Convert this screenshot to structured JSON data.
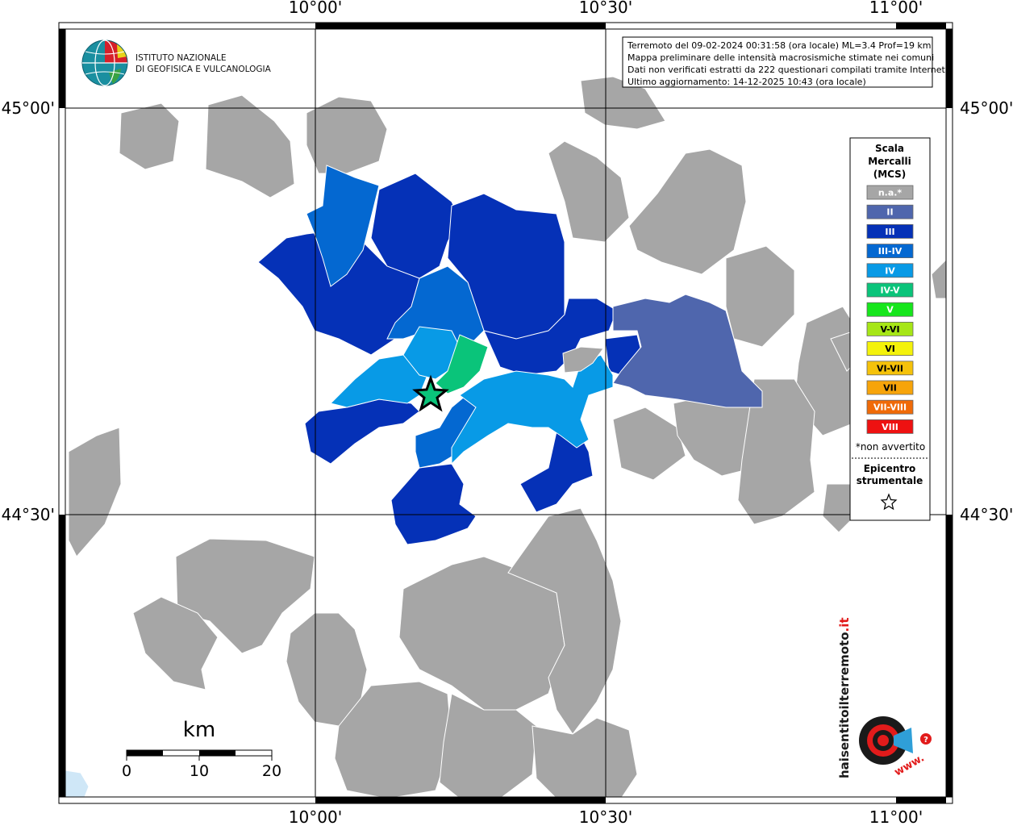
{
  "map": {
    "coords": {
      "top": [
        "10°00'",
        "10°30'",
        "11°00'"
      ],
      "bottom": [
        "10°00'",
        "10°30'",
        "11°00'"
      ],
      "left": [
        "45°00'",
        "44°30'"
      ],
      "right": [
        "45°00'",
        "44°30'"
      ]
    },
    "logo": {
      "line1": "ISTITUTO NAZIONALE",
      "line2": "DI GEOFISICA E VULCANOLOGIA"
    },
    "info": {
      "line1": "Terremoto del 09-02-2024 00:31:58 (ora locale) ML=3.4 Prof=19 km",
      "line2": "Mappa preliminare delle intensità macrosismiche stimate nei comuni",
      "line3": "Dati non verificati estratti da 222 questionari compilati tramite Internet.",
      "line4": "Ultimo aggiornamento: 14-12-2025 10:43 (ora locale)"
    },
    "legend": {
      "title1": "Scala",
      "title2": "Mercalli",
      "title3": "(MCS)",
      "classes": [
        {
          "label": "n.a.*",
          "color": "#a6a6a6"
        },
        {
          "label": "II",
          "color": "#4f66ad"
        },
        {
          "label": "III",
          "color": "#0531b7"
        },
        {
          "label": "III-IV",
          "color": "#0468d1"
        },
        {
          "label": "IV",
          "color": "#089ae6"
        },
        {
          "label": "IV-V",
          "color": "#0ac47a"
        },
        {
          "label": "V",
          "color": "#16e61c"
        },
        {
          "label": "V-VI",
          "color": "#a6e616"
        },
        {
          "label": "VI",
          "color": "#f4f20a"
        },
        {
          "label": "VI-VII",
          "color": "#f5c20a"
        },
        {
          "label": "VII",
          "color": "#f7a40a"
        },
        {
          "label": "VII-VIII",
          "color": "#f06a08"
        },
        {
          "label": "VIII",
          "color": "#ee1111"
        }
      ],
      "note": "*non avvertito",
      "epicentre1": "Epicentro",
      "epicentre2": "strumentale"
    },
    "scalebar": {
      "title": "km",
      "ticks": [
        "0",
        "10",
        "20"
      ]
    },
    "watermark": {
      "text1": "haisentitoilterremoto",
      "text2": ".it",
      "text3": "www."
    }
  }
}
